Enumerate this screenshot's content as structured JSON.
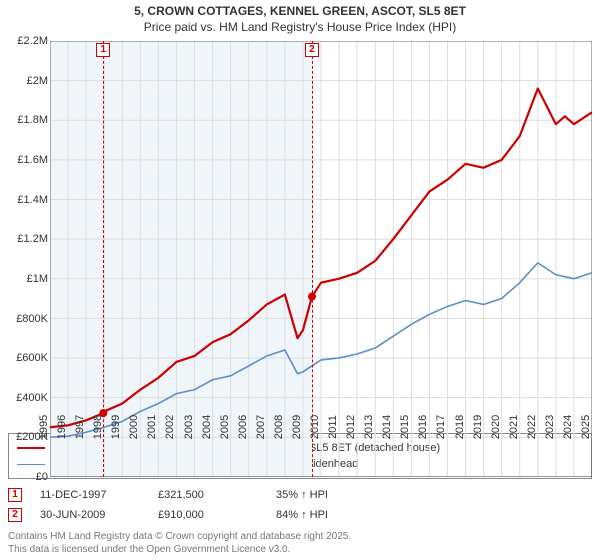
{
  "title_main": "5, CROWN COTTAGES, KENNEL GREEN, ASCOT, SL5 8ET",
  "title_sub": "Price paid vs. HM Land Registry's House Price Index (HPI)",
  "chart": {
    "type": "line",
    "background_color": "#ffffff",
    "plot_bg_until_last_marker": "#f0f5fa",
    "grid_color": "#dddddd",
    "axis_color": "#666666",
    "label_fontsize": 11,
    "xlim": [
      1995,
      2025
    ],
    "ylim": [
      0,
      2200000
    ],
    "yticks": [
      {
        "v": 0,
        "label": "£0"
      },
      {
        "v": 200000,
        "label": "£200K"
      },
      {
        "v": 400000,
        "label": "£400K"
      },
      {
        "v": 600000,
        "label": "£600K"
      },
      {
        "v": 800000,
        "label": "£800K"
      },
      {
        "v": 1000000,
        "label": "£1M"
      },
      {
        "v": 1200000,
        "label": "£1.2M"
      },
      {
        "v": 1400000,
        "label": "£1.4M"
      },
      {
        "v": 1600000,
        "label": "£1.6M"
      },
      {
        "v": 1800000,
        "label": "£1.8M"
      },
      {
        "v": 2000000,
        "label": "£2M"
      },
      {
        "v": 2200000,
        "label": "£2.2M"
      }
    ],
    "xticks": [
      1995,
      1996,
      1997,
      1998,
      1999,
      2000,
      2001,
      2002,
      2003,
      2004,
      2005,
      2006,
      2007,
      2008,
      2009,
      2010,
      2011,
      2012,
      2013,
      2014,
      2015,
      2016,
      2017,
      2018,
      2019,
      2020,
      2021,
      2022,
      2023,
      2024,
      2025
    ],
    "series": [
      {
        "name": "5, CROWN COTTAGES, KENNEL GREEN, ASCOT, SL5 8ET (detached house)",
        "color": "#cc0000",
        "line_width": 2.2,
        "x": [
          1995,
          1996,
          1997,
          1997.95,
          1998,
          1999,
          2000,
          2001,
          2002,
          2003,
          2004,
          2005,
          2006,
          2007,
          2008,
          2008.7,
          2009,
          2009.5,
          2010,
          2011,
          2012,
          2013,
          2014,
          2015,
          2016,
          2017,
          2018,
          2019,
          2020,
          2021,
          2022,
          2023,
          2023.5,
          2024,
          2025
        ],
        "y": [
          250000,
          260000,
          285000,
          321500,
          330000,
          370000,
          440000,
          500000,
          580000,
          610000,
          680000,
          720000,
          790000,
          870000,
          920000,
          700000,
          740000,
          910000,
          980000,
          1000000,
          1030000,
          1090000,
          1200000,
          1320000,
          1440000,
          1500000,
          1580000,
          1560000,
          1600000,
          1720000,
          1960000,
          1780000,
          1820000,
          1780000,
          1840000
        ]
      },
      {
        "name": "HPI: Average price, detached house, Windsor and Maidenhead",
        "color": "#5b8fc7",
        "line_width": 1.6,
        "x": [
          1995,
          1996,
          1997,
          1998,
          1999,
          2000,
          2001,
          2002,
          2003,
          2004,
          2005,
          2006,
          2007,
          2008,
          2008.7,
          2009,
          2010,
          2011,
          2012,
          2013,
          2014,
          2015,
          2016,
          2017,
          2018,
          2019,
          2020,
          2021,
          2022,
          2023,
          2024,
          2025
        ],
        "y": [
          200000,
          205000,
          225000,
          250000,
          280000,
          330000,
          370000,
          420000,
          440000,
          490000,
          510000,
          560000,
          610000,
          640000,
          520000,
          530000,
          590000,
          600000,
          620000,
          650000,
          710000,
          770000,
          820000,
          860000,
          890000,
          870000,
          900000,
          980000,
          1080000,
          1020000,
          1000000,
          1030000
        ]
      }
    ],
    "sale_points": [
      {
        "x": 1997.95,
        "y": 321500,
        "color": "#cc0000"
      },
      {
        "x": 2009.5,
        "y": 910000,
        "color": "#cc0000"
      }
    ],
    "markers": [
      {
        "n": "1",
        "x": 1997.95,
        "color": "#cc0000"
      },
      {
        "n": "2",
        "x": 2009.5,
        "color": "#cc0000"
      }
    ]
  },
  "legend": {
    "items": [
      {
        "color": "#cc0000",
        "width": 2.2,
        "label": "5, CROWN COTTAGES, KENNEL GREEN, ASCOT, SL5 8ET (detached house)"
      },
      {
        "color": "#5b8fc7",
        "width": 1.6,
        "label": "HPI: Average price, detached house, Windsor and Maidenhead"
      }
    ]
  },
  "marker_rows": [
    {
      "n": "1",
      "color": "#cc0000",
      "date": "11-DEC-1997",
      "price": "£321,500",
      "pct": "35% ↑ HPI"
    },
    {
      "n": "2",
      "color": "#cc0000",
      "date": "30-JUN-2009",
      "price": "£910,000",
      "pct": "84% ↑ HPI"
    }
  ],
  "footer_line1": "Contains HM Land Registry data © Crown copyright and database right 2025.",
  "footer_line2": "This data is licensed under the Open Government Licence v3.0."
}
